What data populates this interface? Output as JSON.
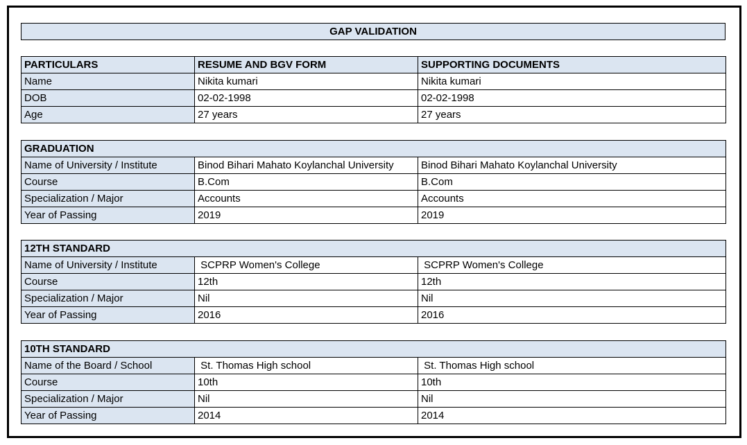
{
  "page": {
    "title": "GAP VALIDATION"
  },
  "colors": {
    "header_fill": "#dbe5f1",
    "border": "#000000",
    "text": "#000000",
    "background": "#ffffff"
  },
  "particulars_table": {
    "headers": {
      "particulars": "PARTICULARS",
      "resume": "RESUME AND BGV FORM",
      "supporting": "SUPPORTING DOCUMENTS"
    },
    "rows": [
      {
        "label": "Name",
        "resume": "Nikita kumari",
        "supporting": "Nikita kumari"
      },
      {
        "label": "DOB",
        "resume": "02-02-1998",
        "supporting": "02-02-1998"
      },
      {
        "label": "Age",
        "resume": "27 years",
        "supporting": "27 years"
      }
    ]
  },
  "sections": [
    {
      "title": "GRADUATION",
      "rows": [
        {
          "label": "Name of University / Institute",
          "resume": "Binod Bihari Mahato Koylanchal University",
          "supporting": "Binod Bihari Mahato Koylanchal University"
        },
        {
          "label": "Course",
          "resume": "B.Com",
          "supporting": "B.Com"
        },
        {
          "label": "Specialization / Major",
          "resume": "Accounts",
          "supporting": "Accounts"
        },
        {
          "label": "Year of Passing",
          "resume": "2019",
          "supporting": "2019"
        }
      ]
    },
    {
      "title": "12TH STANDARD",
      "rows": [
        {
          "label": "Name of University / Institute",
          "resume": " SCPRP Women's College",
          "supporting": " SCPRP Women's College"
        },
        {
          "label": "Course",
          "resume": "12th",
          "supporting": "12th"
        },
        {
          "label": "Specialization / Major",
          "resume": "Nil",
          "supporting": "Nil"
        },
        {
          "label": "Year of Passing",
          "resume": "2016",
          "supporting": "2016"
        }
      ]
    },
    {
      "title": "10TH STANDARD",
      "rows": [
        {
          "label": "Name of the Board / School",
          "resume": " St. Thomas High school",
          "supporting": " St. Thomas High school"
        },
        {
          "label": "Course",
          "resume": "10th",
          "supporting": "10th"
        },
        {
          "label": "Specialization / Major",
          "resume": "Nil",
          "supporting": "Nil"
        },
        {
          "label": "Year of Passing",
          "resume": "2014",
          "supporting": "2014"
        }
      ]
    }
  ]
}
